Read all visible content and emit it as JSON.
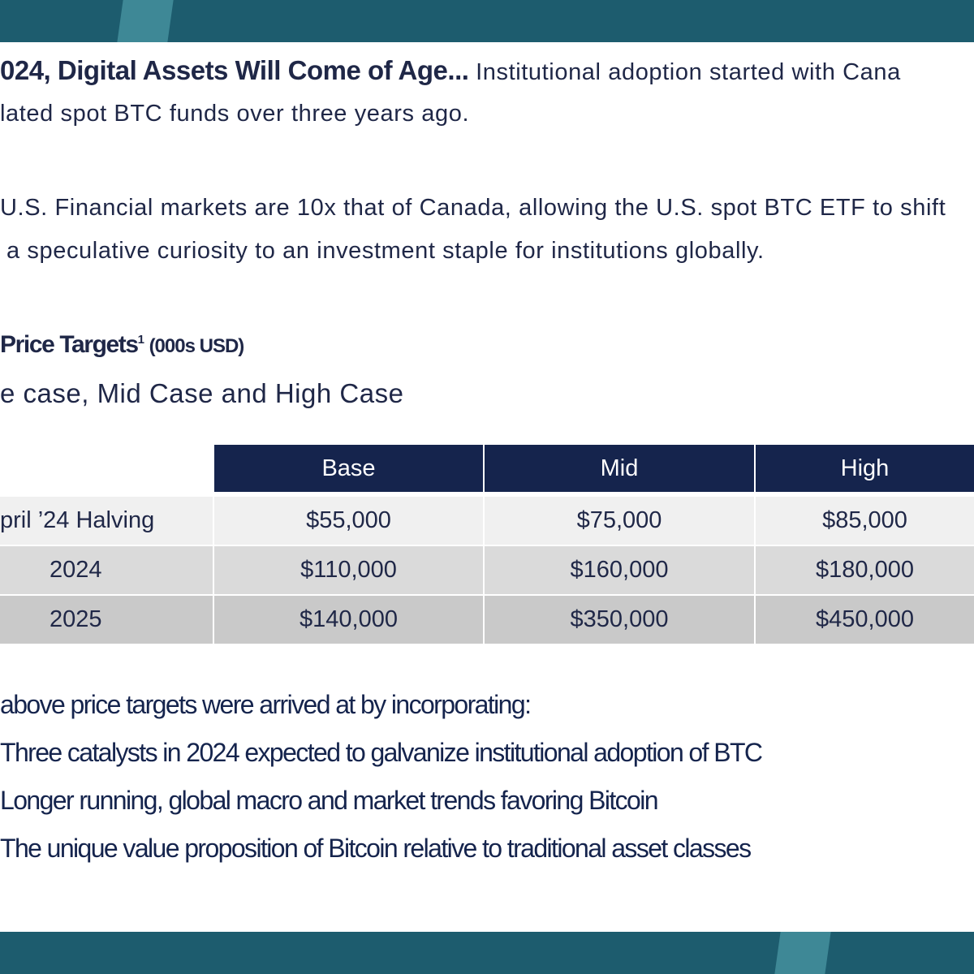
{
  "intro": {
    "heading": "024, Digital Assets Will Come of Age...",
    "text_line1": "Institutional adoption started with Cana",
    "text_line2": "lated spot BTC funds over three years ago."
  },
  "paragraph": {
    "line1": "U.S. Financial markets are 10x that of Canada, allowing the U.S. spot BTC ETF to shift",
    "line2": "a speculative curiosity to an investment staple for institutions globally."
  },
  "section": {
    "title": "Price Targets",
    "footnote_mark": "1",
    "units": "(000s USD)",
    "subtitle": "e case, Mid Case and High Case"
  },
  "table": {
    "header": [
      "Base",
      "Mid",
      "High"
    ],
    "rows": [
      [
        "pril ’24 Halving",
        "$55,000",
        "$75,000",
        "$85,000"
      ],
      [
        "2024",
        "$110,000",
        "$160,000",
        "$180,000"
      ],
      [
        "2025",
        "$140,000",
        "$350,000",
        "$450,000"
      ]
    ]
  },
  "notes": {
    "lead": "above price targets were arrived at by incorporating:",
    "items": [
      "Three catalysts in 2024 expected to galvanize institutional adoption of BTC",
      "Longer running, global macro and market trends favoring Bitcoin",
      "The unique value proposition of Bitcoin relative to traditional asset classes"
    ]
  }
}
